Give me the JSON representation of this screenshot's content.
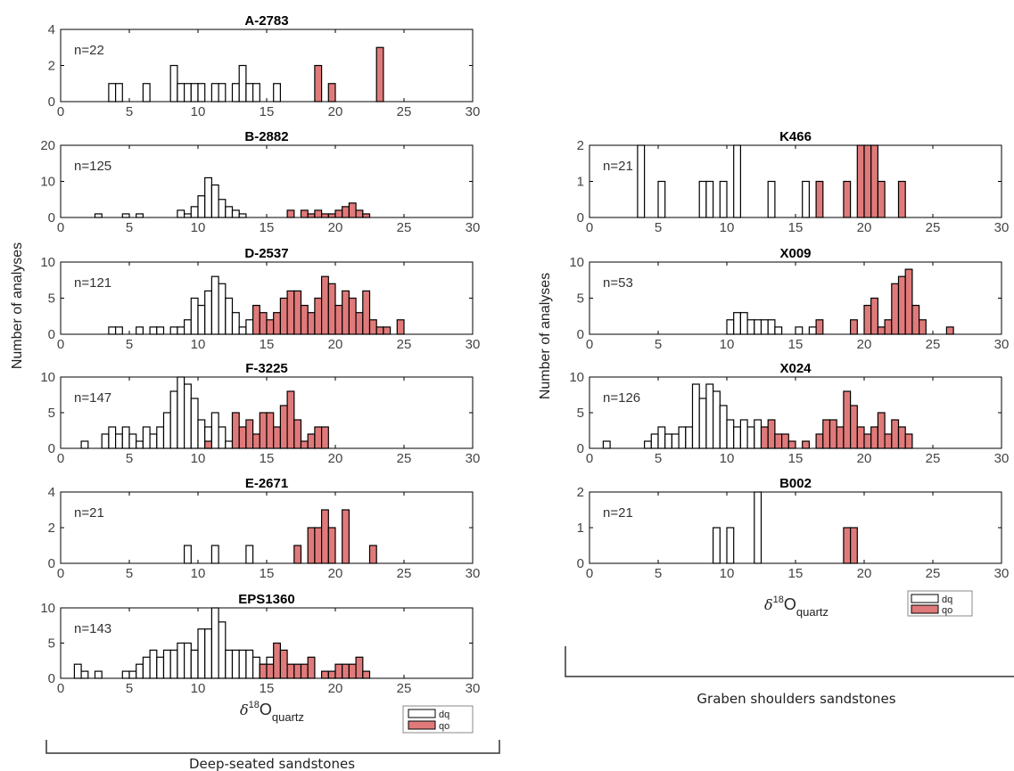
{
  "colors": {
    "dq": "#ffffff",
    "qo": "#e07a7a",
    "axis": "#000000",
    "bracket": "#333333"
  },
  "groups": {
    "left": {
      "label": "Deep-seated sandstones",
      "ylabel": "Number of analyses"
    },
    "right": {
      "label": "Graben shoulders sandstones",
      "ylabel": "Number of analyses"
    }
  },
  "xlabel_main": "δ",
  "xlabel_sup": "18",
  "xlabel_O": "O",
  "xlabel_sub": "quartz",
  "legend": {
    "dq": "dq",
    "qo": "qo"
  },
  "chart_data": [
    {
      "type": "bar",
      "title": "A-2783",
      "n_label": "n=22",
      "xlim": [
        0,
        30
      ],
      "ylim": [
        0,
        4
      ],
      "yticks": [
        0,
        2,
        4
      ],
      "xticks": [
        0,
        5,
        10,
        15,
        20,
        25,
        30
      ],
      "series": [
        {
          "name": "dq",
          "x": [
            3.75,
            4.25,
            6.25,
            8.25,
            8.75,
            9.25,
            9.75,
            10.25,
            11.25,
            11.75,
            12.75,
            13.25,
            13.75,
            14.25,
            15.75
          ],
          "y": [
            1,
            1,
            1,
            2,
            1,
            1,
            1,
            1,
            1,
            1,
            1,
            2,
            1,
            1,
            1
          ]
        },
        {
          "name": "qo",
          "x": [
            18.75,
            19.75,
            23.25
          ],
          "y": [
            2,
            1,
            3
          ]
        }
      ]
    },
    {
      "type": "bar",
      "title": "B-2882",
      "n_label": "n=125",
      "xlim": [
        0,
        30
      ],
      "ylim": [
        0,
        20
      ],
      "yticks": [
        0,
        10,
        20
      ],
      "xticks": [
        0,
        5,
        10,
        15,
        20,
        25,
        30
      ],
      "series": [
        {
          "name": "dq",
          "x": [
            2.75,
            4.75,
            5.75,
            8.75,
            9.25,
            9.75,
            10.25,
            10.75,
            11.25,
            11.75,
            12.25,
            12.75,
            13.25
          ],
          "y": [
            1,
            1,
            1,
            2,
            1,
            3,
            6,
            11,
            9,
            5,
            3,
            2,
            1
          ]
        },
        {
          "name": "qo",
          "x": [
            16.75,
            17.75,
            18.25,
            18.75,
            19.25,
            19.75,
            20.25,
            20.75,
            21.25,
            21.75,
            22.25
          ],
          "y": [
            2,
            2,
            1,
            2,
            1,
            1,
            2,
            3,
            4,
            2,
            1
          ]
        }
      ]
    },
    {
      "type": "bar",
      "title": "D-2537",
      "n_label": "n=121",
      "xlim": [
        0,
        30
      ],
      "ylim": [
        0,
        10
      ],
      "yticks": [
        0,
        5,
        10
      ],
      "xticks": [
        0,
        5,
        10,
        15,
        20,
        25,
        30
      ],
      "series": [
        {
          "name": "dq",
          "x": [
            3.75,
            4.25,
            5.75,
            6.75,
            7.25,
            8.25,
            8.75,
            9.25,
            9.75,
            10.25,
            10.75,
            11.25,
            11.75,
            12.25,
            12.75,
            13.25,
            13.75
          ],
          "y": [
            1,
            1,
            1,
            1,
            1,
            1,
            1,
            2,
            5,
            4,
            6,
            8,
            7,
            5,
            3,
            1,
            2
          ]
        },
        {
          "name": "qo",
          "x": [
            14.25,
            14.75,
            15.25,
            15.75,
            16.25,
            16.75,
            17.25,
            17.75,
            18.25,
            18.75,
            19.25,
            19.75,
            20.25,
            20.75,
            21.25,
            21.75,
            22.25,
            22.75,
            23.25,
            23.75,
            24.75
          ],
          "y": [
            4,
            3,
            2,
            3,
            5,
            6,
            6,
            4,
            3,
            5,
            8,
            7,
            4,
            6,
            5,
            3,
            6,
            2,
            1,
            1,
            2
          ]
        }
      ]
    },
    {
      "type": "bar",
      "title": "F-3225",
      "n_label": "n=147",
      "xlim": [
        0,
        30
      ],
      "ylim": [
        0,
        10
      ],
      "yticks": [
        0,
        5,
        10
      ],
      "xticks": [
        0,
        5,
        10,
        15,
        20,
        25,
        30
      ],
      "series": [
        {
          "name": "dq",
          "x": [
            1.75,
            3.25,
            3.75,
            4.25,
            4.75,
            5.25,
            5.75,
            6.25,
            6.75,
            7.25,
            7.75,
            8.25,
            8.75,
            9.25,
            9.75,
            10.25,
            10.75,
            11.25,
            11.75,
            12.25
          ],
          "y": [
            1,
            2,
            3,
            2,
            3,
            2,
            1,
            3,
            2,
            3,
            5,
            8,
            10,
            9,
            7,
            4,
            3,
            5,
            3,
            1
          ]
        },
        {
          "name": "qo",
          "x": [
            10.75,
            12.75,
            13.25,
            13.75,
            14.25,
            14.75,
            15.25,
            15.75,
            16.25,
            16.75,
            17.25,
            17.75,
            18.25,
            18.75,
            19.25
          ],
          "y": [
            1,
            5,
            3,
            4,
            2,
            5,
            5,
            3,
            6,
            8,
            4,
            1,
            2,
            3,
            3
          ]
        }
      ]
    },
    {
      "type": "bar",
      "title": "E-2671",
      "n_label": "n=21",
      "xlim": [
        0,
        30
      ],
      "ylim": [
        0,
        4
      ],
      "yticks": [
        0,
        2,
        4
      ],
      "xticks": [
        0,
        5,
        10,
        15,
        20,
        25,
        30
      ],
      "series": [
        {
          "name": "dq",
          "x": [
            9.25,
            11.25,
            13.75
          ],
          "y": [
            1,
            1,
            1
          ]
        },
        {
          "name": "qo",
          "x": [
            17.25,
            18.25,
            18.75,
            19.25,
            19.75,
            20.75,
            22.75
          ],
          "y": [
            1,
            2,
            2,
            3,
            2,
            3,
            1
          ]
        }
      ]
    },
    {
      "type": "bar",
      "title": "EPS1360",
      "n_label": "n=143",
      "xlim": [
        0,
        30
      ],
      "ylim": [
        0,
        10
      ],
      "yticks": [
        0,
        5,
        10
      ],
      "xticks": [
        0,
        5,
        10,
        15,
        20,
        25,
        30
      ],
      "series": [
        {
          "name": "dq",
          "x": [
            1.25,
            1.75,
            2.75,
            4.75,
            5.25,
            5.75,
            6.25,
            6.75,
            7.25,
            7.75,
            8.25,
            8.75,
            9.25,
            9.75,
            10.25,
            10.75,
            11.25,
            11.75,
            12.25,
            12.75,
            13.25,
            13.75,
            14.25,
            14.75,
            15.25
          ],
          "y": [
            2,
            1,
            1,
            1,
            1,
            2,
            3,
            4,
            3,
            4,
            4,
            5,
            5,
            4,
            7,
            7,
            10,
            8,
            4,
            4,
            4,
            4,
            3,
            2,
            3
          ]
        },
        {
          "name": "qo",
          "x": [
            14.75,
            15.25,
            15.75,
            16.25,
            16.75,
            17.25,
            17.75,
            18.25,
            19.25,
            19.75,
            20.25,
            20.75,
            21.25,
            21.75,
            22.25
          ],
          "y": [
            2,
            2,
            5,
            4,
            2,
            2,
            2,
            3,
            1,
            1,
            2,
            2,
            2,
            3,
            1
          ]
        }
      ]
    },
    {
      "type": "bar",
      "title": "K466",
      "n_label": "n=21",
      "xlim": [
        0,
        30
      ],
      "ylim": [
        0,
        2
      ],
      "yticks": [
        0,
        1,
        2
      ],
      "xticks": [
        0,
        5,
        10,
        15,
        20,
        25,
        30
      ],
      "series": [
        {
          "name": "dq",
          "x": [
            3.75,
            5.25,
            8.25,
            8.75,
            9.75,
            10.75,
            13.25,
            15.75
          ],
          "y": [
            2,
            1,
            1,
            1,
            1,
            2,
            1,
            1
          ]
        },
        {
          "name": "qo",
          "x": [
            16.75,
            18.75,
            19.75,
            20.25,
            20.75,
            21.25,
            22.75
          ],
          "y": [
            1,
            1,
            2,
            2,
            2,
            1,
            1
          ]
        }
      ]
    },
    {
      "type": "bar",
      "title": "X009",
      "n_label": "n=53",
      "xlim": [
        0,
        30
      ],
      "ylim": [
        0,
        10
      ],
      "yticks": [
        0,
        5,
        10
      ],
      "xticks": [
        0,
        5,
        10,
        15,
        20,
        25,
        30
      ],
      "series": [
        {
          "name": "dq",
          "x": [
            10.25,
            10.75,
            11.25,
            11.75,
            12.25,
            12.75,
            13.25,
            13.75,
            15.25,
            16.25
          ],
          "y": [
            2,
            3,
            3,
            2,
            2,
            2,
            2,
            1,
            1,
            1
          ]
        },
        {
          "name": "qo",
          "x": [
            16.75,
            19.25,
            20.25,
            20.75,
            21.25,
            21.75,
            22.25,
            22.75,
            23.25,
            23.75,
            24.25,
            26.25
          ],
          "y": [
            2,
            2,
            4,
            5,
            1,
            2,
            7,
            8,
            9,
            4,
            2,
            1
          ]
        }
      ]
    },
    {
      "type": "bar",
      "title": "X024",
      "n_label": "n=126",
      "xlim": [
        0,
        30
      ],
      "ylim": [
        0,
        10
      ],
      "yticks": [
        0,
        5,
        10
      ],
      "xticks": [
        0,
        5,
        10,
        15,
        20,
        25,
        30
      ],
      "series": [
        {
          "name": "dq",
          "x": [
            1.25,
            4.25,
            4.75,
            5.25,
            5.75,
            6.25,
            6.75,
            7.25,
            7.75,
            8.25,
            8.75,
            9.25,
            9.75,
            10.25,
            10.75,
            11.25,
            11.75,
            12.25
          ],
          "y": [
            1,
            1,
            2,
            3,
            2,
            2,
            3,
            3,
            9,
            7,
            9,
            8,
            6,
            4,
            3,
            4,
            3,
            4
          ]
        },
        {
          "name": "qo",
          "x": [
            12.75,
            13.25,
            13.75,
            14.25,
            14.75,
            15.75,
            16.75,
            17.25,
            17.75,
            18.25,
            18.75,
            19.25,
            19.75,
            20.25,
            20.75,
            21.25,
            21.75,
            22.25,
            22.75,
            23.25
          ],
          "y": [
            3,
            4,
            2,
            2,
            1,
            1,
            2,
            4,
            4,
            3,
            8,
            6,
            3,
            2,
            3,
            5,
            2,
            4,
            3,
            2
          ]
        }
      ]
    },
    {
      "type": "bar",
      "title": "B002",
      "n_label": "n=21",
      "xlim": [
        0,
        30
      ],
      "ylim": [
        0,
        2
      ],
      "yticks": [
        0,
        1,
        2
      ],
      "xticks": [
        0,
        5,
        10,
        15,
        20,
        25,
        30
      ],
      "series": [
        {
          "name": "dq",
          "x": [
            9.25,
            10.25,
            12.25
          ],
          "y": [
            1,
            1,
            2
          ]
        },
        {
          "name": "qo",
          "x": [
            18.75,
            19.25
          ],
          "y": [
            1,
            1
          ]
        }
      ]
    }
  ]
}
